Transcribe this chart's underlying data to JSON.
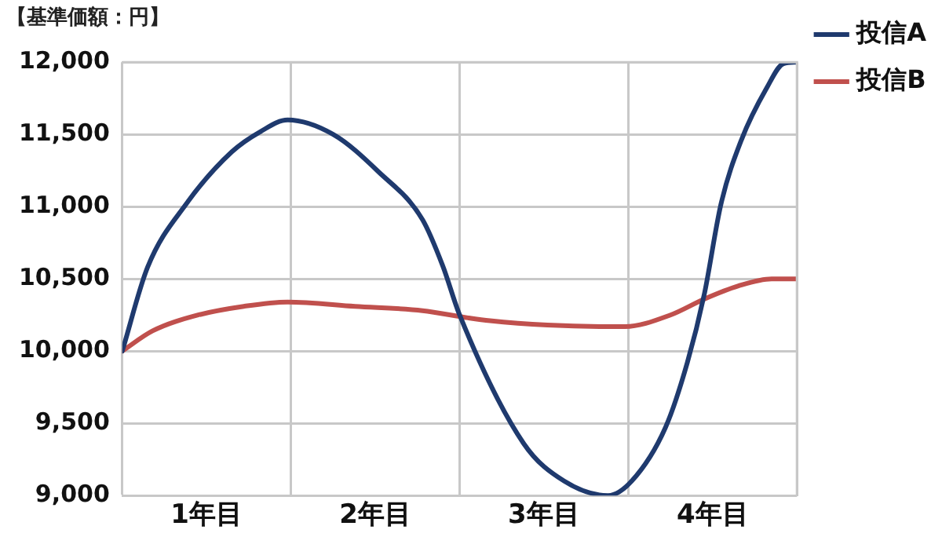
{
  "chart_data": {
    "type": "line",
    "title": "【基準価額：円】",
    "xlim": [
      0,
      4
    ],
    "xticks": [
      {
        "value": 0,
        "label": null
      },
      {
        "value": 0.5,
        "label": "1年目"
      },
      {
        "value": 1,
        "label": null
      },
      {
        "value": 1.5,
        "label": "2年目"
      },
      {
        "value": 2,
        "label": null
      },
      {
        "value": 2.5,
        "label": "3年目"
      },
      {
        "value": 3,
        "label": null
      },
      {
        "value": 3.5,
        "label": "4年目"
      },
      {
        "value": 4,
        "label": null
      }
    ],
    "ylim": [
      9000,
      12000
    ],
    "yticks": [
      {
        "value": 9000,
        "label": "9,000"
      },
      {
        "value": 9500,
        "label": "9,500"
      },
      {
        "value": 10000,
        "label": "10,000"
      },
      {
        "value": 10500,
        "label": "10,500"
      },
      {
        "value": 11000,
        "label": "11,000"
      },
      {
        "value": 11500,
        "label": "11,500"
      },
      {
        "value": 12000,
        "label": "12,000"
      }
    ],
    "grid": true,
    "legend": "right",
    "marker": "none",
    "line_style": "solid",
    "series": [
      {
        "name": "投信A",
        "color": "#1f3a6e",
        "x": [
          0,
          0.15,
          0.38,
          0.65,
          0.82,
          0.98,
          1.25,
          1.52,
          1.78,
          1.9,
          2.0,
          2.38,
          2.62,
          2.88,
          3.02,
          3.22,
          3.35,
          3.45,
          3.55,
          3.67,
          3.82,
          3.92,
          4
        ],
        "values": [
          10000,
          10580,
          11020,
          11380,
          11520,
          11600,
          11500,
          11240,
          10910,
          10590,
          10250,
          9360,
          9100,
          9000,
          9100,
          9470,
          9920,
          10390,
          11020,
          11460,
          11820,
          11990,
          12000
        ]
      },
      {
        "name": "投信B",
        "color": "#c0504d",
        "x": [
          0,
          0.18,
          0.45,
          0.72,
          0.98,
          1.38,
          1.78,
          2.05,
          2.18,
          2.52,
          2.85,
          2.98,
          3.25,
          3.45,
          3.65,
          3.85,
          4
        ],
        "values": [
          10000,
          10140,
          10250,
          10310,
          10340,
          10310,
          10280,
          10230,
          10210,
          10180,
          10170,
          10170,
          10250,
          10360,
          10450,
          10500,
          10500
        ]
      }
    ]
  }
}
